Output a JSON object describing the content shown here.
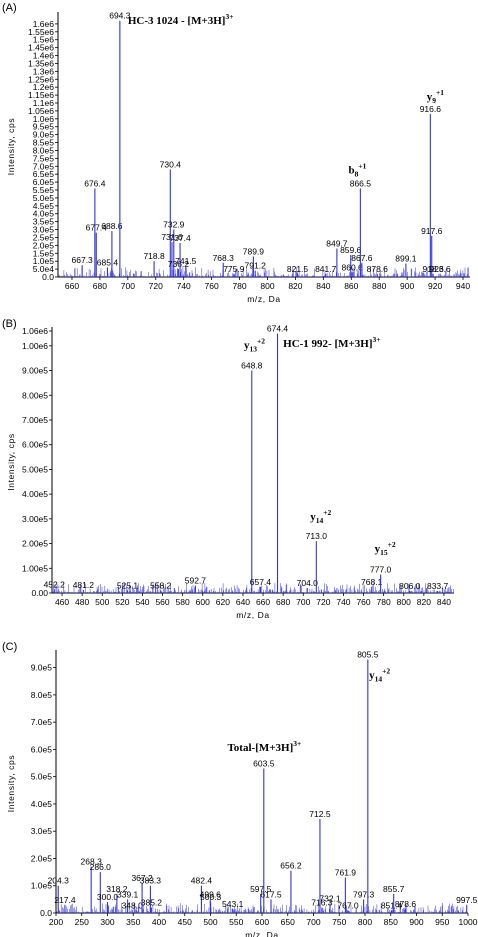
{
  "chart_data": [
    {
      "type": "line",
      "panel": "(A)",
      "xlabel": "m/z, Da",
      "ylabel": "Intensity, cps",
      "xlim": [
        650,
        945
      ],
      "ylim": [
        0,
        1650000
      ],
      "x_ticks": [
        660,
        680,
        700,
        720,
        740,
        760,
        780,
        800,
        820,
        840,
        860,
        880,
        900,
        920,
        940
      ],
      "y_ticks": [
        {
          "v": 0,
          "t": "0.0"
        },
        {
          "v": 50000,
          "t": "5.0e4"
        },
        {
          "v": 100000,
          "t": "1.0e5"
        },
        {
          "v": 150000,
          "t": "1.5e5"
        },
        {
          "v": 200000,
          "t": "2.0e5"
        },
        {
          "v": 250000,
          "t": "2.5e5"
        },
        {
          "v": 300000,
          "t": "3.0e5"
        },
        {
          "v": 350000,
          "t": "3.5e5"
        },
        {
          "v": 400000,
          "t": "4.0e5"
        },
        {
          "v": 450000,
          "t": "4.5e5"
        },
        {
          "v": 500000,
          "t": "5.0e5"
        },
        {
          "v": 550000,
          "t": "5.5e5"
        },
        {
          "v": 600000,
          "t": "6.0e5"
        },
        {
          "v": 650000,
          "t": "6.5e5"
        },
        {
          "v": 700000,
          "t": "7.0e5"
        },
        {
          "v": 750000,
          "t": "7.5e5"
        },
        {
          "v": 800000,
          "t": "8.0e5"
        },
        {
          "v": 850000,
          "t": "8.5e5"
        },
        {
          "v": 900000,
          "t": "9.0e5"
        },
        {
          "v": 950000,
          "t": "9.5e5"
        },
        {
          "v": 1000000,
          "t": "1.0e6"
        },
        {
          "v": 1050000,
          "t": "1.05e6"
        },
        {
          "v": 1100000,
          "t": "1.1e6"
        },
        {
          "v": 1150000,
          "t": "1.15e6"
        },
        {
          "v": 1200000,
          "t": "1.2e6"
        },
        {
          "v": 1250000,
          "t": "1.25e6"
        },
        {
          "v": 1300000,
          "t": "1.3e6"
        },
        {
          "v": 1350000,
          "t": "1.35e6"
        },
        {
          "v": 1400000,
          "t": "1.4e6"
        },
        {
          "v": 1450000,
          "t": "1.45e6"
        },
        {
          "v": 1500000,
          "t": "1.5e6"
        },
        {
          "v": 1550000,
          "t": "1.55e6"
        },
        {
          "v": 1600000,
          "t": "1.6e6"
        }
      ],
      "y_tick_labels_shown": [
        "0.0",
        "5.0e4",
        "1.0e5",
        "1.5e5",
        "2.0e5",
        "2.5e5",
        "3.0e5",
        "3.5e5",
        "4.0e5",
        "4.5e5",
        "5.0e5",
        "5.5e5",
        "6.0e5",
        "6.5e5",
        "7.0e5",
        "7.5e5",
        "8.0e5",
        "8.5e5",
        "9.0e5",
        "9.5e5",
        "1.0e6",
        "1.05e6",
        "1.1e6",
        "1.15e6",
        "1.2e6",
        "1.25e6",
        "1.3e6",
        "1.35e6",
        "1.4e6",
        "1.45e6",
        "1.5e6",
        "1.55e6",
        "1.6e6"
      ],
      "peaks": [
        {
          "mz": 667.3,
          "i": 75000,
          "label": "667.3"
        },
        {
          "mz": 676.4,
          "i": 560000,
          "label": "676.4"
        },
        {
          "mz": 677.4,
          "i": 280000,
          "label": "677.4"
        },
        {
          "mz": 685.4,
          "i": 60000,
          "label": "685.4"
        },
        {
          "mz": 688.6,
          "i": 290000,
          "label": "688.6"
        },
        {
          "mz": 694.3,
          "i": 1620000,
          "label": "694.3"
        },
        {
          "mz": 718.8,
          "i": 100000,
          "label": "718.8"
        },
        {
          "mz": 730.4,
          "i": 680000,
          "label": "730.4"
        },
        {
          "mz": 731.6,
          "i": 220000,
          "label": "731.6"
        },
        {
          "mz": 732.9,
          "i": 300000,
          "label": "732.9"
        },
        {
          "mz": 736.2,
          "i": 50000,
          "label": "736.2"
        },
        {
          "mz": 737.4,
          "i": 215000,
          "label": "737.4"
        },
        {
          "mz": 741.5,
          "i": 70000,
          "label": "741.5"
        },
        {
          "mz": 768.3,
          "i": 90000,
          "label": "768.3"
        },
        {
          "mz": 775.9,
          "i": 20000,
          "label": "775.9"
        },
        {
          "mz": 789.9,
          "i": 130000,
          "label": "789.9"
        },
        {
          "mz": 791.2,
          "i": 40000,
          "label": "791.2"
        },
        {
          "mz": 821.5,
          "i": 20000,
          "label": "821.5"
        },
        {
          "mz": 841.7,
          "i": 20000,
          "label": "841.7"
        },
        {
          "mz": 849.7,
          "i": 180000,
          "label": "849.7"
        },
        {
          "mz": 859.6,
          "i": 140000,
          "label": "859.6"
        },
        {
          "mz": 860.6,
          "i": 30000,
          "label": "860.6"
        },
        {
          "mz": 866.5,
          "i": 560000,
          "label": "866.5"
        },
        {
          "mz": 867.6,
          "i": 90000,
          "label": "867.6"
        },
        {
          "mz": 878.6,
          "i": 20000,
          "label": "878.6"
        },
        {
          "mz": 899.1,
          "i": 85000,
          "label": "899.1"
        },
        {
          "mz": 916.6,
          "i": 1030000,
          "label": "916.6"
        },
        {
          "mz": 917.6,
          "i": 260000,
          "label": "917.6"
        },
        {
          "mz": 918.6,
          "i": 20000,
          "label": "918.6"
        },
        {
          "mz": 923.6,
          "i": 20000,
          "label": "923.6"
        }
      ],
      "annotations": [
        {
          "text": "HC-3 1024 - [M+3H]",
          "sup": "3+",
          "mz": 700,
          "i": 1600000
        },
        {
          "text": "y",
          "sub": "9",
          "sup": "+1",
          "mz": 914,
          "i": 1120000
        },
        {
          "text": "b",
          "sub": "8",
          "sup": "+1",
          "mz": 858,
          "i": 655000
        }
      ]
    },
    {
      "type": "line",
      "panel": "(B)",
      "xlabel": "m/z, Da",
      "ylabel": "Intensity, cps",
      "xlim": [
        450,
        850
      ],
      "ylim": [
        0,
        1060000
      ],
      "x_ticks": [
        460,
        480,
        500,
        520,
        540,
        560,
        580,
        600,
        620,
        640,
        660,
        680,
        700,
        720,
        740,
        760,
        780,
        800,
        820,
        840
      ],
      "y_ticks": [
        {
          "v": 0,
          "t": "0.00"
        },
        {
          "v": 100000,
          "t": "1.00e5"
        },
        {
          "v": 200000,
          "t": "2.00e5"
        },
        {
          "v": 300000,
          "t": "3.00e5"
        },
        {
          "v": 400000,
          "t": "4.00e5"
        },
        {
          "v": 500000,
          "t": "5.00e5"
        },
        {
          "v": 600000,
          "t": "6.00e5"
        },
        {
          "v": 700000,
          "t": "7.00e5"
        },
        {
          "v": 800000,
          "t": "8.00e5"
        },
        {
          "v": 900000,
          "t": "9.00e5"
        },
        {
          "v": 1000000,
          "t": "1.00e6"
        },
        {
          "v": 1060000,
          "t": "1.06e6"
        }
      ],
      "peaks": [
        {
          "mz": 452.2,
          "i": 15000,
          "label": "452.2"
        },
        {
          "mz": 481.2,
          "i": 12000,
          "label": "481.2"
        },
        {
          "mz": 525.1,
          "i": 10000,
          "label": "525.1"
        },
        {
          "mz": 558.2,
          "i": 10000,
          "label": "558.2"
        },
        {
          "mz": 592.7,
          "i": 30000,
          "label": "592.7"
        },
        {
          "mz": 648.8,
          "i": 900000,
          "label": "648.8"
        },
        {
          "mz": 657.4,
          "i": 25000,
          "label": "657.4"
        },
        {
          "mz": 674.4,
          "i": 1050000,
          "label": "674.4"
        },
        {
          "mz": 704.0,
          "i": 20000,
          "label": "704.0"
        },
        {
          "mz": 713.0,
          "i": 210000,
          "label": "713.0"
        },
        {
          "mz": 768.1,
          "i": 25000,
          "label": "768.1"
        },
        {
          "mz": 777.0,
          "i": 75000,
          "label": "777.0"
        },
        {
          "mz": 806.0,
          "i": 8000,
          "label": "806.0"
        },
        {
          "mz": 833.7,
          "i": 8000,
          "label": "833.7"
        }
      ],
      "annotations": [
        {
          "text": "HC-1 992- [M+3H]",
          "sup": "3+",
          "mz": 680,
          "i": 995000
        },
        {
          "text": "y",
          "sub": "13",
          "sup": "+2",
          "mz": 641,
          "i": 990000
        },
        {
          "text": "y",
          "sub": "14",
          "sup": "+2",
          "mz": 707,
          "i": 295000
        },
        {
          "text": "y",
          "sub": "15",
          "sup": "+2",
          "mz": 771,
          "i": 165000
        }
      ]
    },
    {
      "type": "line",
      "panel": "(C)",
      "xlabel": "m/z, Da",
      "ylabel": "Intensity, cps",
      "xlim": [
        200,
        1000
      ],
      "ylim": [
        0,
        950000
      ],
      "x_ticks": [
        200,
        250,
        300,
        350,
        400,
        450,
        500,
        550,
        600,
        650,
        700,
        750,
        800,
        850,
        900,
        950,
        1000
      ],
      "y_ticks": [
        {
          "v": 0,
          "t": "0.0"
        },
        {
          "v": 100000,
          "t": "1.0e5"
        },
        {
          "v": 200000,
          "t": "2.0e5"
        },
        {
          "v": 300000,
          "t": "3.0e5"
        },
        {
          "v": 400000,
          "t": "4.0e5"
        },
        {
          "v": 500000,
          "t": "5.0e5"
        },
        {
          "v": 600000,
          "t": "6.0e5"
        },
        {
          "v": 700000,
          "t": "7.0e5"
        },
        {
          "v": 800000,
          "t": "8.0e5"
        },
        {
          "v": 900000,
          "t": "9.0e5"
        }
      ],
      "peaks": [
        {
          "mz": 204.3,
          "i": 100000,
          "label": "204.3"
        },
        {
          "mz": 217.4,
          "i": 30000,
          "label": "217.4"
        },
        {
          "mz": 268.3,
          "i": 170000,
          "label": "268.3"
        },
        {
          "mz": 286.0,
          "i": 150000,
          "label": "286.0"
        },
        {
          "mz": 300.0,
          "i": 40000,
          "label": "300.0"
        },
        {
          "mz": 318.2,
          "i": 70000,
          "label": "318.2"
        },
        {
          "mz": 339.1,
          "i": 50000,
          "label": "339.1"
        },
        {
          "mz": 348.0,
          "i": 10000,
          "label": "348.0"
        },
        {
          "mz": 367.2,
          "i": 110000,
          "label": "367.2"
        },
        {
          "mz": 383.3,
          "i": 100000,
          "label": "383.3"
        },
        {
          "mz": 385.2,
          "i": 20000,
          "label": "385.2"
        },
        {
          "mz": 482.4,
          "i": 100000,
          "label": "482.4"
        },
        {
          "mz": 499.6,
          "i": 50000,
          "label": "499.6"
        },
        {
          "mz": 500.3,
          "i": 40000,
          "label": "500.3"
        },
        {
          "mz": 543.1,
          "i": 15000,
          "label": "543.1"
        },
        {
          "mz": 597.5,
          "i": 70000,
          "label": "597.5"
        },
        {
          "mz": 603.5,
          "i": 530000,
          "label": "603.5"
        },
        {
          "mz": 617.5,
          "i": 50000,
          "label": "617.5"
        },
        {
          "mz": 656.2,
          "i": 155000,
          "label": "656.2"
        },
        {
          "mz": 712.5,
          "i": 345000,
          "label": "712.5"
        },
        {
          "mz": 716.3,
          "i": 20000,
          "label": "716.3"
        },
        {
          "mz": 732.1,
          "i": 35000,
          "label": "732.1"
        },
        {
          "mz": 761.9,
          "i": 130000,
          "label": "761.9"
        },
        {
          "mz": 767.0,
          "i": 10000,
          "label": "767.0"
        },
        {
          "mz": 797.3,
          "i": 50000,
          "label": "797.3"
        },
        {
          "mz": 805.5,
          "i": 930000,
          "label": "805.5"
        },
        {
          "mz": 851.4,
          "i": 10000,
          "label": "851.4"
        },
        {
          "mz": 855.7,
          "i": 70000,
          "label": "855.7"
        },
        {
          "mz": 878.6,
          "i": 15000,
          "label": "878.6"
        },
        {
          "mz": 997.5,
          "i": 30000,
          "label": "997.5"
        }
      ],
      "annotations": [
        {
          "text": "Total-[M+3H]",
          "sup": "3+",
          "mz": 533,
          "i": 595000
        },
        {
          "text": "y",
          "sub": "14",
          "sup": "+2",
          "mz": 808,
          "i": 860000
        }
      ]
    }
  ],
  "colors": {
    "trace": "#3333dd",
    "axis": "#000000",
    "text": "#000000"
  }
}
